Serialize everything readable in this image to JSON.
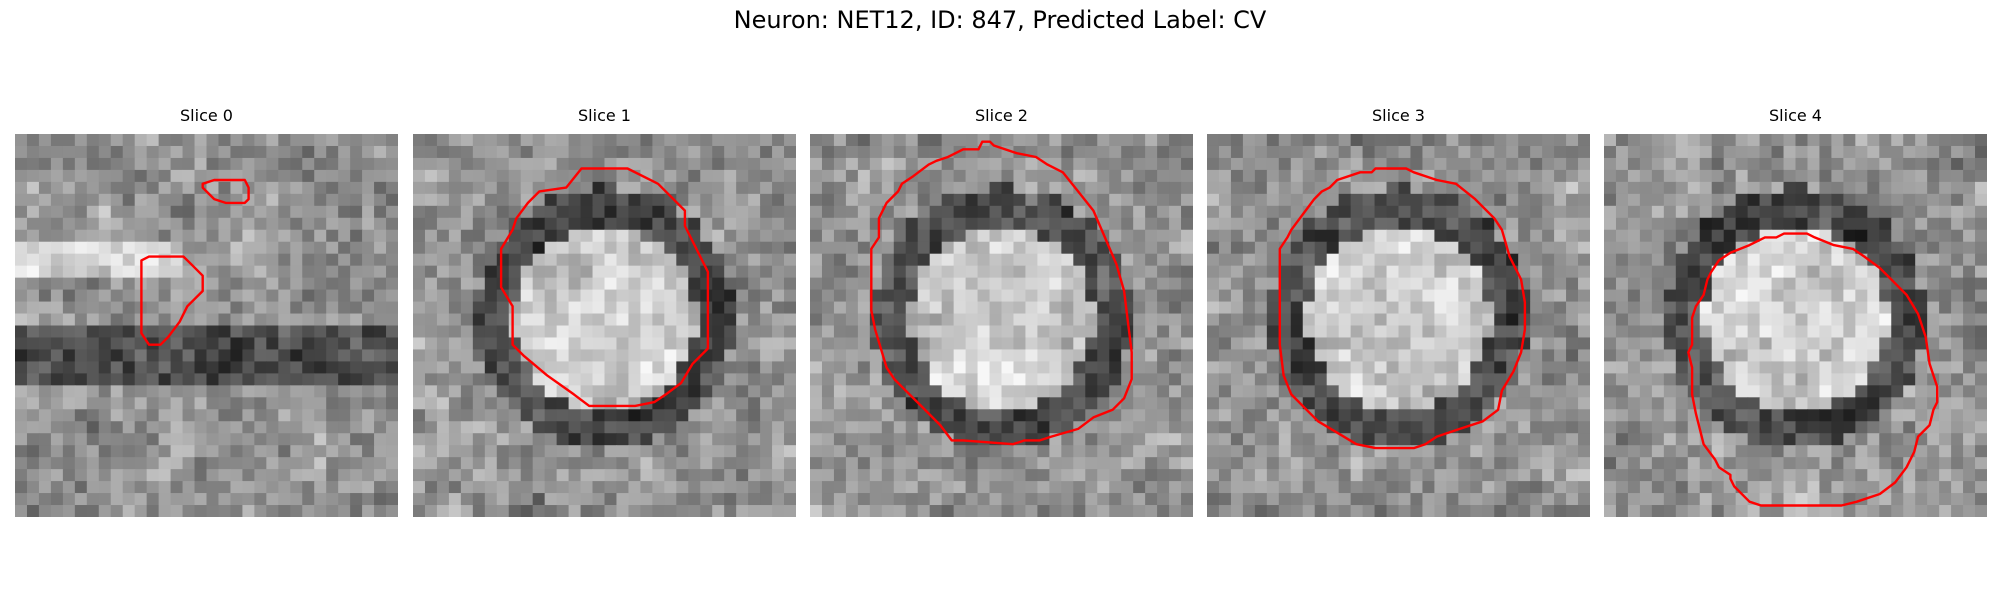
{
  "figure": {
    "title": "Neuron: NET12, ID: 847, Predicted Label: CV",
    "contour_color": "#ff0000",
    "panels": [
      {
        "title": "Slice 0",
        "seed": 11,
        "feature": "blobs",
        "contours": [
          [
            [
              0.49,
              0.13
            ],
            [
              0.52,
              0.12
            ],
            [
              0.6,
              0.12
            ],
            [
              0.61,
              0.14
            ],
            [
              0.61,
              0.17
            ],
            [
              0.6,
              0.18
            ],
            [
              0.55,
              0.18
            ],
            [
              0.52,
              0.17
            ],
            [
              0.49,
              0.14
            ]
          ],
          [
            [
              0.33,
              0.33
            ],
            [
              0.35,
              0.32
            ],
            [
              0.44,
              0.32
            ],
            [
              0.46,
              0.34
            ],
            [
              0.49,
              0.37
            ],
            [
              0.49,
              0.41
            ],
            [
              0.45,
              0.45
            ],
            [
              0.43,
              0.49
            ],
            [
              0.4,
              0.53
            ],
            [
              0.38,
              0.55
            ],
            [
              0.35,
              0.55
            ],
            [
              0.33,
              0.52
            ],
            [
              0.33,
              0.4
            ]
          ]
        ]
      },
      {
        "title": "Slice 1",
        "seed": 23,
        "feature": "ring",
        "contours": [
          [
            [
              0.4,
              0.14
            ],
            [
              0.44,
              0.09
            ],
            [
              0.56,
              0.09
            ],
            [
              0.64,
              0.13
            ],
            [
              0.71,
              0.2
            ],
            [
              0.71,
              0.24
            ],
            [
              0.74,
              0.3
            ],
            [
              0.77,
              0.36
            ],
            [
              0.77,
              0.56
            ],
            [
              0.73,
              0.6
            ],
            [
              0.7,
              0.65
            ],
            [
              0.66,
              0.68
            ],
            [
              0.63,
              0.7
            ],
            [
              0.58,
              0.71
            ],
            [
              0.46,
              0.71
            ],
            [
              0.42,
              0.68
            ],
            [
              0.35,
              0.63
            ],
            [
              0.29,
              0.58
            ],
            [
              0.26,
              0.55
            ],
            [
              0.26,
              0.45
            ],
            [
              0.23,
              0.4
            ],
            [
              0.23,
              0.3
            ],
            [
              0.26,
              0.25
            ],
            [
              0.27,
              0.22
            ],
            [
              0.3,
              0.18
            ],
            [
              0.33,
              0.15
            ]
          ]
        ]
      },
      {
        "title": "Slice 2",
        "seed": 37,
        "feature": "ring",
        "contours": [
          [
            [
              0.38,
              0.05
            ],
            [
              0.4,
              0.04
            ],
            [
              0.44,
              0.04
            ],
            [
              0.45,
              0.02
            ],
            [
              0.47,
              0.02
            ],
            [
              0.48,
              0.03
            ],
            [
              0.54,
              0.05
            ],
            [
              0.59,
              0.06
            ],
            [
              0.62,
              0.08
            ],
            [
              0.66,
              0.1
            ],
            [
              0.7,
              0.15
            ],
            [
              0.74,
              0.2
            ],
            [
              0.77,
              0.27
            ],
            [
              0.8,
              0.34
            ],
            [
              0.82,
              0.41
            ],
            [
              0.83,
              0.49
            ],
            [
              0.84,
              0.57
            ],
            [
              0.84,
              0.64
            ],
            [
              0.82,
              0.69
            ],
            [
              0.79,
              0.72
            ],
            [
              0.74,
              0.74
            ],
            [
              0.7,
              0.77
            ],
            [
              0.63,
              0.79
            ],
            [
              0.6,
              0.8
            ],
            [
              0.56,
              0.8
            ],
            [
              0.53,
              0.81
            ],
            [
              0.4,
              0.8
            ],
            [
              0.37,
              0.8
            ],
            [
              0.34,
              0.76
            ],
            [
              0.29,
              0.71
            ],
            [
              0.24,
              0.66
            ],
            [
              0.22,
              0.64
            ],
            [
              0.2,
              0.61
            ],
            [
              0.17,
              0.51
            ],
            [
              0.16,
              0.46
            ],
            [
              0.16,
              0.3
            ],
            [
              0.18,
              0.27
            ],
            [
              0.18,
              0.22
            ],
            [
              0.2,
              0.18
            ],
            [
              0.23,
              0.15
            ],
            [
              0.24,
              0.13
            ],
            [
              0.27,
              0.11
            ],
            [
              0.31,
              0.08
            ],
            [
              0.33,
              0.07
            ],
            [
              0.36,
              0.06
            ]
          ]
        ]
      },
      {
        "title": "Slice 3",
        "seed": 53,
        "feature": "ring",
        "contours": [
          [
            [
              0.34,
              0.12
            ],
            [
              0.4,
              0.1
            ],
            [
              0.43,
              0.1
            ],
            [
              0.44,
              0.09
            ],
            [
              0.52,
              0.09
            ],
            [
              0.54,
              0.1
            ],
            [
              0.6,
              0.12
            ],
            [
              0.65,
              0.13
            ],
            [
              0.7,
              0.17
            ],
            [
              0.75,
              0.22
            ],
            [
              0.77,
              0.25
            ],
            [
              0.79,
              0.32
            ],
            [
              0.82,
              0.38
            ],
            [
              0.83,
              0.44
            ],
            [
              0.83,
              0.51
            ],
            [
              0.82,
              0.57
            ],
            [
              0.8,
              0.62
            ],
            [
              0.77,
              0.67
            ],
            [
              0.76,
              0.72
            ],
            [
              0.72,
              0.75
            ],
            [
              0.66,
              0.77
            ],
            [
              0.6,
              0.79
            ],
            [
              0.57,
              0.81
            ],
            [
              0.54,
              0.82
            ],
            [
              0.44,
              0.82
            ],
            [
              0.39,
              0.81
            ],
            [
              0.34,
              0.78
            ],
            [
              0.29,
              0.75
            ],
            [
              0.26,
              0.72
            ],
            [
              0.22,
              0.68
            ],
            [
              0.2,
              0.63
            ],
            [
              0.19,
              0.55
            ],
            [
              0.19,
              0.42
            ],
            [
              0.19,
              0.32
            ],
            [
              0.19,
              0.3
            ],
            [
              0.21,
              0.27
            ],
            [
              0.22,
              0.25
            ],
            [
              0.25,
              0.21
            ],
            [
              0.28,
              0.17
            ],
            [
              0.3,
              0.15
            ],
            [
              0.32,
              0.14
            ]
          ]
        ]
      },
      {
        "title": "Slice 4",
        "seed": 71,
        "feature": "ring",
        "contours": [
          [
            [
              0.3,
              0.33
            ],
            [
              0.33,
              0.31
            ],
            [
              0.38,
              0.29
            ],
            [
              0.42,
              0.27
            ],
            [
              0.45,
              0.27
            ],
            [
              0.47,
              0.26
            ],
            [
              0.53,
              0.26
            ],
            [
              0.55,
              0.27
            ],
            [
              0.6,
              0.29
            ],
            [
              0.65,
              0.3
            ],
            [
              0.68,
              0.32
            ],
            [
              0.72,
              0.35
            ],
            [
              0.75,
              0.38
            ],
            [
              0.79,
              0.42
            ],
            [
              0.82,
              0.47
            ],
            [
              0.84,
              0.53
            ],
            [
              0.85,
              0.6
            ],
            [
              0.87,
              0.66
            ],
            [
              0.87,
              0.7
            ],
            [
              0.86,
              0.72
            ],
            [
              0.85,
              0.76
            ],
            [
              0.82,
              0.79
            ],
            [
              0.81,
              0.83
            ],
            [
              0.79,
              0.87
            ],
            [
              0.76,
              0.91
            ],
            [
              0.72,
              0.94
            ],
            [
              0.66,
              0.96
            ],
            [
              0.62,
              0.97
            ],
            [
              0.41,
              0.97
            ],
            [
              0.38,
              0.96
            ],
            [
              0.34,
              0.92
            ],
            [
              0.33,
              0.9
            ],
            [
              0.33,
              0.89
            ],
            [
              0.3,
              0.87
            ],
            [
              0.29,
              0.85
            ],
            [
              0.26,
              0.81
            ],
            [
              0.25,
              0.77
            ],
            [
              0.24,
              0.73
            ],
            [
              0.23,
              0.68
            ],
            [
              0.23,
              0.61
            ],
            [
              0.22,
              0.57
            ],
            [
              0.23,
              0.55
            ],
            [
              0.23,
              0.51
            ],
            [
              0.23,
              0.48
            ],
            [
              0.24,
              0.45
            ],
            [
              0.26,
              0.42
            ],
            [
              0.27,
              0.38
            ],
            [
              0.28,
              0.36
            ]
          ]
        ]
      }
    ]
  }
}
